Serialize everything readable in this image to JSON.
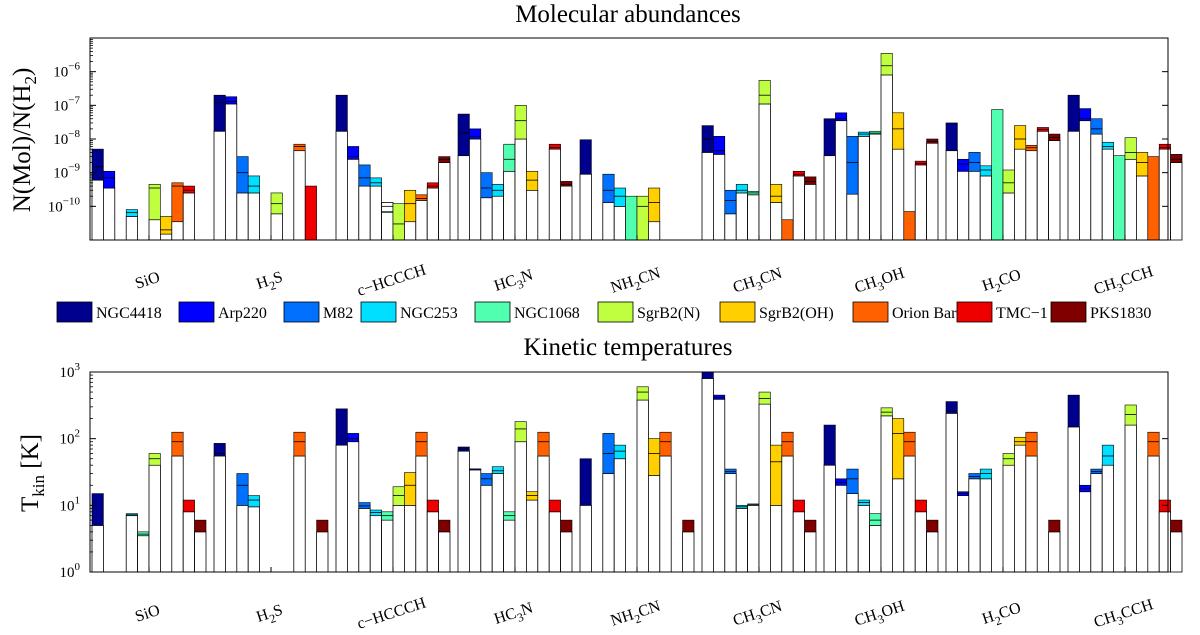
{
  "chart_data": [
    {
      "type": "bar",
      "title": "Molecular abundances",
      "ylabel": "N(Mol)/N(H2)",
      "yscale": "log",
      "ylim": [
        1e-11,
        1e-05
      ],
      "yticks": [
        {
          "v": 1e-10,
          "base": "10",
          "exp": "−10"
        },
        {
          "v": 1e-09,
          "base": "10",
          "exp": "−9"
        },
        {
          "v": 1e-08,
          "base": "10",
          "exp": "−8"
        },
        {
          "v": 1e-07,
          "base": "10",
          "exp": "−7"
        },
        {
          "v": 1e-06,
          "base": "10",
          "exp": "−6"
        }
      ],
      "categories": [
        {
          "name": "SiO",
          "parts": [
            {
              "t": "SiO"
            }
          ]
        },
        {
          "name": "H2S",
          "parts": [
            {
              "t": "H"
            },
            {
              "t": "2",
              "sub": true
            },
            {
              "t": "S"
            }
          ]
        },
        {
          "name": "c-HCCCH",
          "parts": [
            {
              "t": "c−HCCCH"
            }
          ]
        },
        {
          "name": "HC3N",
          "parts": [
            {
              "t": "HC"
            },
            {
              "t": "3",
              "sub": true
            },
            {
              "t": "N"
            }
          ]
        },
        {
          "name": "NH2CN",
          "parts": [
            {
              "t": "NH"
            },
            {
              "t": "2",
              "sub": true
            },
            {
              "t": "CN"
            }
          ]
        },
        {
          "name": "CH3CN",
          "parts": [
            {
              "t": "CH"
            },
            {
              "t": "3",
              "sub": true
            },
            {
              "t": "CN"
            }
          ]
        },
        {
          "name": "CH3OH",
          "parts": [
            {
              "t": "CH"
            },
            {
              "t": "3",
              "sub": true
            },
            {
              "t": "OH"
            }
          ]
        },
        {
          "name": "H2CO",
          "parts": [
            {
              "t": "H"
            },
            {
              "t": "2",
              "sub": true
            },
            {
              "t": "CO"
            }
          ]
        },
        {
          "name": "CH3CCH",
          "parts": [
            {
              "t": "CH"
            },
            {
              "t": "3",
              "sub": true
            },
            {
              "t": "CCH"
            }
          ]
        }
      ],
      "series_names": [
        "NGC4418",
        "Arp220",
        "M82",
        "NGC253",
        "NGC1068",
        "SgrB2(N)",
        "SgrB2(OH)",
        "Orion Bar",
        "TMC−1",
        "PKS1830"
      ],
      "values": [
        [
          [
            6e-10,
            5e-09,
            1.5e-09
          ],
          [
            3.5e-10,
            1.1e-09,
            7e-10
          ],
          null,
          [
            5e-11,
            8e-11,
            6.5e-11
          ],
          null,
          [
            4e-11,
            4.5e-10,
            3.5e-10
          ],
          [
            1.5e-11,
            5e-11,
            2e-11
          ],
          [
            3.5e-11,
            5e-10,
            4e-10
          ],
          [
            2.5e-10,
            4e-10,
            3e-10
          ],
          null
        ],
        [
          [
            1.7e-08,
            2e-07,
            1.2e-07
          ],
          [
            1.1e-07,
            1.8e-07,
            1.3e-07
          ],
          [
            2.5e-10,
            3e-09,
            1e-09
          ],
          [
            2.5e-10,
            8e-10,
            4e-10
          ],
          null,
          [
            6e-11,
            2.5e-10,
            1.2e-10
          ],
          null,
          [
            4.5e-09,
            7e-09,
            6e-09
          ],
          [
            1e-11,
            4e-10,
            null
          ],
          null
        ],
        [
          [
            1.7e-08,
            2e-07,
            null
          ],
          [
            2.5e-09,
            6e-09,
            3e-09
          ],
          [
            4e-10,
            1.7e-09,
            7e-10
          ],
          [
            4e-10,
            7e-10,
            5e-10
          ],
          [
            1.3e-10,
            7e-11,
            1e-10
          ],
          [
            1e-11,
            1.2e-10,
            3e-11
          ],
          [
            3.5e-11,
            3e-10,
            1.2e-10
          ],
          [
            1.5e-10,
            2.2e-10,
            1.7e-10
          ],
          [
            3.5e-10,
            5e-10,
            4e-10
          ],
          [
            2e-09,
            3e-09,
            2.5e-09
          ]
        ],
        [
          [
            3.2e-09,
            5.5e-08,
            1.5e-08
          ],
          [
            1e-08,
            2e-08,
            1.2e-08
          ],
          [
            1.8e-10,
            1e-09,
            3.5e-10
          ],
          [
            2e-10,
            4.5e-10,
            3e-10
          ],
          [
            1.1e-09,
            7e-09,
            2.5e-09
          ],
          [
            1e-08,
            1e-07,
            3.5e-08
          ],
          [
            3e-10,
            1.1e-09,
            6e-10
          ],
          null,
          [
            5e-09,
            7e-09,
            5.5e-09
          ],
          [
            4e-10,
            5.5e-10,
            4.5e-10
          ]
        ],
        [
          [
            9e-10,
            9.5e-09,
            null
          ],
          null,
          [
            1.3e-10,
            9e-10,
            3e-10
          ],
          [
            1e-10,
            3.5e-10,
            2e-10
          ],
          [
            1e-11,
            2e-10,
            null
          ],
          [
            1e-11,
            2e-10,
            1e-10
          ],
          [
            3.5e-11,
            3.5e-10,
            1.3e-10
          ],
          null,
          null,
          null
        ],
        [
          [
            4e-09,
            2.5e-08,
            1e-08
          ],
          [
            3.5e-09,
            1.2e-08,
            4.5e-09
          ],
          [
            6e-11,
            3e-10,
            1.5e-10
          ],
          [
            2.5e-10,
            4.5e-10,
            3e-10
          ],
          [
            2.2e-10,
            2.8e-10,
            2.5e-10
          ],
          [
            1.1e-07,
            5.5e-07,
            2e-07
          ],
          [
            1.3e-10,
            4.5e-10,
            2e-10
          ],
          [
            1e-11,
            4e-11,
            null
          ],
          [
            8e-10,
            1.1e-09,
            9e-10
          ],
          [
            4.5e-10,
            7.5e-10,
            5.5e-10
          ]
        ],
        [
          [
            3.2e-09,
            4e-08,
            null
          ],
          [
            3.5e-08,
            6e-08,
            4e-08
          ],
          [
            2.3e-10,
            1.2e-08,
            2e-09
          ],
          [
            1.2e-08,
            1.6e-08,
            1.4e-08
          ],
          [
            1.4e-08,
            1.7e-08,
            1.5e-08
          ],
          [
            8e-07,
            3.5e-06,
            1.5e-06
          ],
          [
            5e-09,
            6e-08,
            2e-08
          ],
          [
            1e-11,
            7e-11,
            null
          ],
          [
            1.7e-09,
            2.2e-09,
            1.9e-09
          ],
          [
            7.5e-09,
            1e-08,
            8.5e-09
          ]
        ],
        [
          [
            4.5e-09,
            3e-08,
            null
          ],
          [
            1.1e-09,
            2.5e-09,
            1.8e-09
          ],
          [
            1.1e-09,
            4e-09,
            2e-09
          ],
          [
            8e-10,
            1.6e-09,
            1.2e-09
          ],
          [
            1e-11,
            7.5e-08,
            null
          ],
          [
            2.5e-10,
            1.2e-09,
            5e-10
          ],
          [
            5e-09,
            2.5e-08,
            1e-08
          ],
          [
            4.5e-09,
            6.5e-09,
            5.5e-09
          ],
          [
            1.7e-08,
            2.2e-08,
            1.9e-08
          ],
          [
            9e-09,
            1.4e-08,
            1.1e-08
          ]
        ],
        [
          [
            1.7e-08,
            2e-07,
            null
          ],
          [
            3.5e-08,
            8e-08,
            4e-08
          ],
          [
            1.4e-08,
            4e-08,
            2e-08
          ],
          [
            5e-09,
            8e-09,
            6e-09
          ],
          [
            1e-11,
            3.2e-09,
            null
          ],
          [
            2.5e-09,
            1.1e-08,
            4e-09
          ],
          [
            8e-10,
            4e-09,
            2e-09
          ],
          [
            1e-11,
            3e-09,
            null
          ],
          [
            5e-09,
            7e-09,
            5.5e-09
          ],
          [
            2e-09,
            3.5e-09,
            2.5e-09
          ]
        ]
      ]
    },
    {
      "type": "bar",
      "title": "Kinetic temperatures",
      "ylabel_base": "T",
      "ylabel_sub": "kin",
      "ylabel_unit": "[K]",
      "yscale": "log",
      "ylim": [
        1,
        1000
      ],
      "yticks": [
        {
          "v": 1,
          "base": "10",
          "exp": "0"
        },
        {
          "v": 10,
          "base": "10",
          "exp": "1"
        },
        {
          "v": 100,
          "base": "10",
          "exp": "2"
        },
        {
          "v": 1000,
          "base": "10",
          "exp": "3"
        }
      ],
      "values": [
        [
          [
            5,
            15,
            null
          ],
          null,
          null,
          [
            7,
            7.5,
            7.2
          ],
          [
            3.5,
            4,
            3.7
          ],
          [
            40,
            60,
            50
          ],
          null,
          [
            55,
            125,
            90
          ],
          [
            8,
            12,
            null
          ],
          [
            4,
            6,
            null
          ]
        ],
        [
          [
            55,
            85,
            60
          ],
          null,
          [
            10,
            30,
            20
          ],
          [
            9.5,
            14,
            12
          ],
          null,
          null,
          null,
          [
            55,
            125,
            90
          ],
          null,
          [
            4,
            6,
            null
          ]
        ],
        [
          [
            80,
            280,
            null
          ],
          [
            90,
            120,
            100
          ],
          [
            9,
            11,
            9.8
          ],
          [
            7,
            8.5,
            7.8
          ],
          [
            6,
            8,
            7
          ],
          [
            10,
            19,
            14
          ],
          [
            10,
            31,
            20
          ],
          [
            55,
            125,
            90
          ],
          [
            8,
            12,
            null
          ],
          [
            4,
            6,
            null
          ]
        ],
        [
          [
            65,
            75,
            70
          ],
          [
            35,
            35,
            35
          ],
          [
            20,
            30,
            25
          ],
          [
            30,
            38,
            33
          ],
          [
            6,
            8,
            7
          ],
          [
            90,
            180,
            140
          ],
          [
            12,
            16,
            14
          ],
          [
            55,
            125,
            90
          ],
          [
            8,
            12,
            null
          ],
          [
            4,
            6,
            null
          ]
        ],
        [
          [
            10,
            50,
            null
          ],
          null,
          [
            30,
            120,
            60
          ],
          [
            50,
            80,
            65
          ],
          null,
          [
            380,
            600,
            500
          ],
          [
            28,
            100,
            60
          ],
          [
            55,
            125,
            90
          ],
          null,
          [
            4,
            6,
            null
          ]
        ],
        [
          [
            800,
            1000,
            null
          ],
          [
            390,
            450,
            410
          ],
          [
            30,
            35,
            32
          ],
          [
            9,
            10,
            9.5
          ],
          [
            10,
            10.5,
            10.2
          ],
          [
            330,
            500,
            400
          ],
          [
            10,
            80,
            45
          ],
          [
            55,
            125,
            90
          ],
          [
            8,
            12,
            null
          ],
          [
            4,
            6,
            null
          ]
        ],
        [
          [
            40,
            160,
            null
          ],
          [
            20,
            25,
            22
          ],
          [
            15,
            35,
            25
          ],
          [
            10,
            12,
            11
          ],
          [
            5,
            7.5,
            6
          ],
          [
            220,
            290,
            250
          ],
          [
            25,
            200,
            120
          ],
          [
            55,
            125,
            90
          ],
          [
            8,
            12,
            null
          ],
          [
            4,
            6,
            null
          ]
        ],
        [
          [
            240,
            360,
            260
          ],
          [
            14,
            16,
            15
          ],
          [
            25,
            30,
            27
          ],
          [
            25,
            35,
            30
          ],
          null,
          [
            40,
            60,
            50
          ],
          [
            80,
            105,
            90
          ],
          [
            55,
            125,
            90
          ],
          null,
          [
            4,
            6,
            null
          ]
        ],
        [
          [
            150,
            450,
            null
          ],
          [
            16,
            20,
            18
          ],
          [
            30,
            35,
            32
          ],
          [
            40,
            80,
            55
          ],
          null,
          [
            160,
            320,
            230
          ],
          null,
          [
            55,
            125,
            90
          ],
          [
            8,
            12,
            null
          ],
          [
            4,
            6,
            null
          ]
        ]
      ]
    }
  ],
  "colors": [
    "#00008f",
    "#0000ff",
    "#0070ff",
    "#00dfff",
    "#50ffaf",
    "#bfff40",
    "#ffcf00",
    "#ff6000",
    "#ef0000",
    "#800000"
  ]
}
